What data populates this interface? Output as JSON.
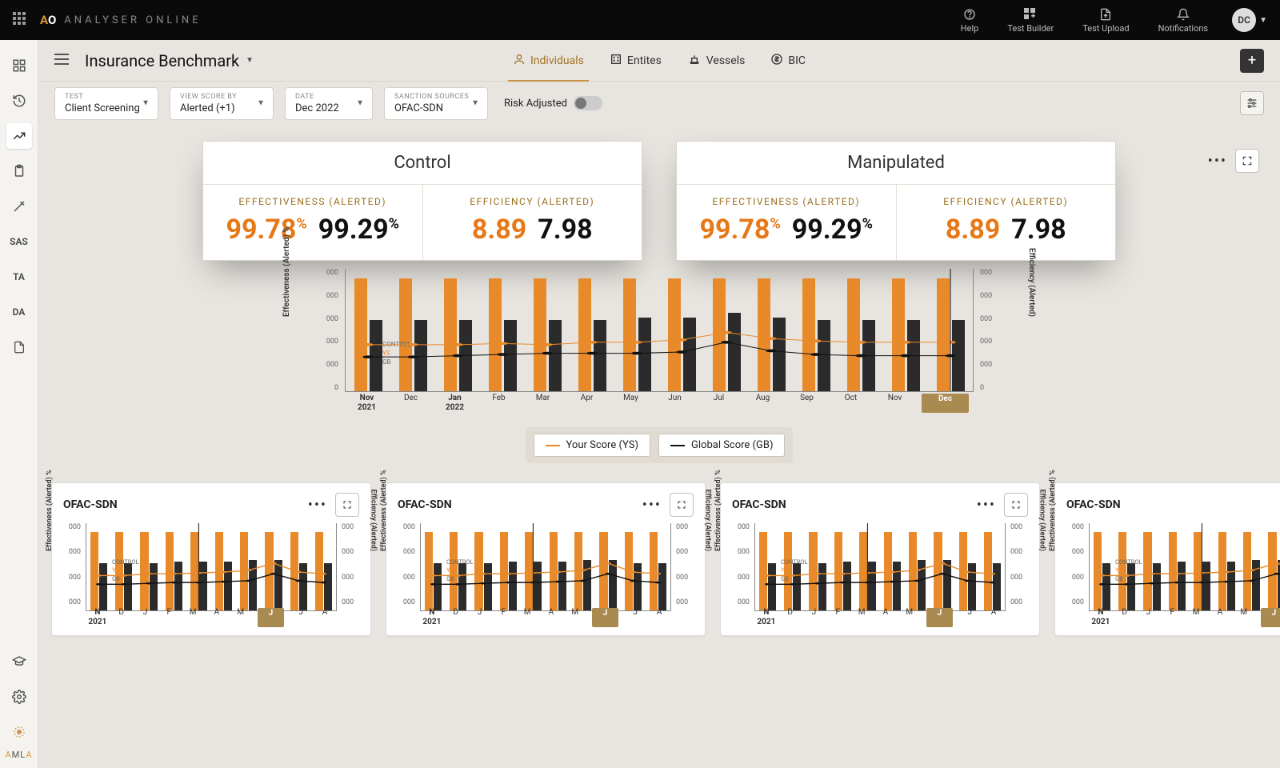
{
  "header": {
    "logo_a": "A",
    "logo_o": "O",
    "product": "ANALYSER ONLINE",
    "nav": [
      {
        "icon": "help",
        "label": "Help"
      },
      {
        "icon": "builder",
        "label": "Test Builder"
      },
      {
        "icon": "upload",
        "label": "Test Upload"
      },
      {
        "icon": "bell",
        "label": "Notifications"
      }
    ],
    "avatar": "DC"
  },
  "left_rail": {
    "footer_a": "A",
    "footer_m": "M",
    "footer_l": "L",
    "footer_a2": "A"
  },
  "page": {
    "title": "Insurance Benchmark",
    "tabs": [
      {
        "icon": "person",
        "label": "Individuals",
        "active": true
      },
      {
        "icon": "building",
        "label": "Entites",
        "active": false
      },
      {
        "icon": "ship",
        "label": "Vessels",
        "active": false
      },
      {
        "icon": "dollar",
        "label": "BIC",
        "active": false
      }
    ]
  },
  "filters": {
    "test": {
      "label": "TEST",
      "value": "Client Screening"
    },
    "view": {
      "label": "VIEW SCORE BY",
      "value": "Alerted (+1)"
    },
    "date": {
      "label": "DATE",
      "value": "Dec 2022"
    },
    "source": {
      "label": "SANCTION SOURCES",
      "value": "OFAC-SDN"
    },
    "risk_label": "Risk Adjusted"
  },
  "kpi": {
    "control": {
      "title": "Control",
      "eff_label": "EFFECTIVENESS (ALERTED)",
      "eff_a": "99.78",
      "eff_b": "99.29",
      "effi_label": "EFFICIENCY (ALERTED)",
      "effi_a": "8.89",
      "effi_b": "7.98"
    },
    "manip": {
      "title": "Manipulated",
      "eff_label": "EFFECTIVENESS (ALERTED)",
      "eff_a": "99.78",
      "eff_b": "99.29",
      "effi_label": "EFFICIENCY (ALERTED)",
      "effi_a": "8.89",
      "effi_b": "7.98"
    }
  },
  "main_chart": {
    "y_ticks": [
      "000",
      "000",
      "000",
      "000",
      "000",
      "0"
    ],
    "y_left_label": "Effectiveness (Alerted) %",
    "y_right_label": "Efficiency (Alerted)",
    "x": [
      "Nov",
      "Dec",
      "Jan",
      "Feb",
      "Mar",
      "Apr",
      "May",
      "Jun",
      "Jul",
      "Aug",
      "Sep",
      "Oct",
      "Nov",
      "Dec"
    ],
    "x_sub": {
      "0": "2021",
      "2": "2022"
    },
    "bold_idx": [
      0,
      2
    ],
    "pill_idx": 13,
    "vline_idx": 13,
    "orange_h": [
      92,
      92,
      92,
      92,
      92,
      92,
      92,
      92,
      92,
      92,
      92,
      92,
      92,
      92
    ],
    "black_h": [
      58,
      58,
      58,
      58,
      58,
      58,
      60,
      60,
      64,
      60,
      58,
      58,
      58,
      58
    ],
    "ys_line": [
      62,
      62,
      62,
      61,
      62,
      60,
      60,
      58,
      52,
      57,
      59,
      60,
      60,
      60
    ],
    "gb_line": [
      72,
      72,
      71,
      70,
      69,
      69,
      69,
      68,
      60,
      67,
      70,
      71,
      71,
      71
    ],
    "legend_inline": {
      "control": "CONTROL",
      "ys": "YS",
      "gb": "GB"
    },
    "legend_pills": {
      "ys": "Your Score (YS)",
      "gb": "Global Score (GB)"
    },
    "colors": {
      "orange": "#e88a2a",
      "black": "#111111"
    }
  },
  "small": {
    "title": "OFAC-SDN",
    "y_ticks": [
      "000",
      "000",
      "000",
      "000"
    ],
    "y_left_label": "Effectiveness (Alerted) %",
    "y_right_label": "Efficiency (Alerted)",
    "x": [
      "N",
      "D",
      "J",
      "F",
      "M",
      "A",
      "M",
      "J",
      "J",
      "A"
    ],
    "x_sub": {
      "0": "2021"
    },
    "bold_idx": [
      0
    ],
    "pill_idx": 7,
    "vline_idx": 4,
    "orange_h": [
      90,
      90,
      90,
      90,
      90,
      90,
      90,
      90,
      90,
      90
    ],
    "black_h": [
      54,
      54,
      54,
      56,
      56,
      56,
      58,
      58,
      54,
      54
    ],
    "ys_line": [
      60,
      60,
      58,
      58,
      57,
      56,
      54,
      46,
      56,
      58
    ],
    "gb_line": [
      70,
      70,
      69,
      68,
      68,
      67,
      66,
      58,
      66,
      68
    ],
    "legend_inline": {
      "control": "CONTROL",
      "ys": "YS",
      "gb": "GB"
    }
  }
}
